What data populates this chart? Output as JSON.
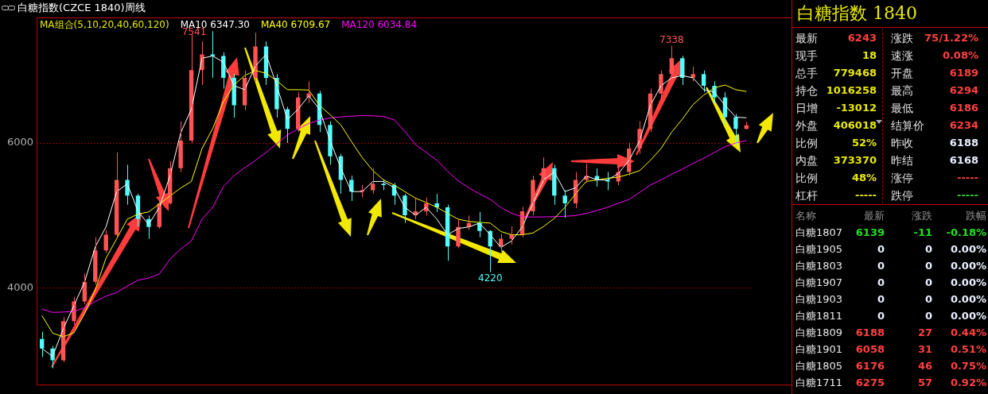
{
  "chart_data": [
    {
      "type": "candlestick",
      "title": "白糖指数(CZCE 1840)周线",
      "legend_title": "MA组合(5,10,20,40,60,120)",
      "legend": "top left",
      "grid": "y",
      "tick_labels": "y",
      "marker": "none",
      "categories": [
        null,
        null,
        null,
        null,
        null,
        null,
        null,
        null,
        null,
        null,
        null,
        null,
        null,
        null,
        null,
        null,
        null,
        null,
        null,
        null,
        null,
        null,
        null,
        null,
        null,
        null,
        null,
        null,
        null,
        null,
        null,
        null,
        null,
        null,
        null,
        null,
        null,
        null,
        null,
        null,
        null,
        null,
        null,
        null,
        null,
        null,
        null,
        null,
        null,
        null,
        null,
        null,
        null,
        null,
        null,
        null,
        null,
        null,
        null,
        null,
        null,
        null,
        null,
        null,
        null,
        null,
        null
      ],
      "ylim": [
        2670,
        7730
      ],
      "yticks": [
        4000,
        6000
      ],
      "ohlc": [
        [
          3300,
          3400,
          3050,
          3168
        ],
        [
          3168,
          3200,
          2897,
          3005
        ],
        [
          3005,
          3600,
          2980,
          3546
        ],
        [
          3546,
          3880,
          3500,
          3816
        ],
        [
          3816,
          4200,
          3780,
          4087
        ],
        [
          4087,
          4700,
          4050,
          4519
        ],
        [
          4519,
          4800,
          4480,
          4735
        ],
        [
          4735,
          5870,
          4700,
          5492
        ],
        [
          5492,
          5700,
          5150,
          5276
        ],
        [
          5276,
          5300,
          4850,
          4951
        ],
        [
          4951,
          5000,
          4681,
          4843
        ],
        [
          4843,
          5220,
          4820,
          5168
        ],
        [
          5168,
          5750,
          5150,
          5654
        ],
        [
          5654,
          6300,
          5600,
          6032
        ],
        [
          6032,
          7492,
          6000,
          7005
        ],
        [
          7005,
          7400,
          6800,
          7222
        ],
        [
          7222,
          7541,
          6900,
          7200
        ],
        [
          7200,
          7250,
          6750,
          6897
        ],
        [
          6897,
          6950,
          6350,
          6519
        ],
        [
          6519,
          7000,
          6450,
          6897
        ],
        [
          6897,
          7520,
          6850,
          7330
        ],
        [
          7330,
          7400,
          6800,
          6897
        ],
        [
          6897,
          6950,
          6350,
          6465
        ],
        [
          6465,
          6500,
          6000,
          6195
        ],
        [
          6195,
          6700,
          6150,
          6627
        ],
        [
          6627,
          6850,
          6550,
          6681
        ],
        [
          6681,
          6720,
          6150,
          6249
        ],
        [
          6249,
          6300,
          5700,
          5816
        ],
        [
          5816,
          5850,
          5300,
          5492
        ],
        [
          5492,
          5550,
          5200,
          5330
        ],
        [
          5330,
          5420,
          5250,
          5350
        ],
        [
          5350,
          5650,
          5300,
          5438
        ],
        [
          5438,
          5500,
          5350,
          5420
        ],
        [
          5420,
          5450,
          5150,
          5276
        ],
        [
          5276,
          5300,
          4900,
          5005
        ],
        [
          5005,
          5250,
          4950,
          5060
        ],
        [
          5060,
          5250,
          5000,
          5168
        ],
        [
          5168,
          5300,
          5050,
          5114
        ],
        [
          5114,
          5150,
          4378,
          4573
        ],
        [
          4573,
          4950,
          4550,
          4843
        ],
        [
          4843,
          5000,
          4800,
          4897
        ],
        [
          4897,
          5050,
          4700,
          4789
        ],
        [
          4789,
          4800,
          4220,
          4573
        ],
        [
          4573,
          4750,
          4500,
          4681
        ],
        [
          4681,
          4850,
          4600,
          4735
        ],
        [
          4735,
          5120,
          4700,
          5060
        ],
        [
          5060,
          5550,
          5000,
          5492
        ],
        [
          5492,
          5800,
          5450,
          5654
        ],
        [
          5654,
          5700,
          5150,
          5276
        ],
        [
          5276,
          5350,
          4970,
          5168
        ],
        [
          5168,
          5600,
          5100,
          5492
        ],
        [
          5492,
          5720,
          5450,
          5546
        ],
        [
          5546,
          5650,
          5400,
          5492
        ],
        [
          5492,
          5600,
          5350,
          5470
        ],
        [
          5470,
          5700,
          5420,
          5600
        ],
        [
          5600,
          6000,
          5550,
          5924
        ],
        [
          5924,
          6300,
          5850,
          6195
        ],
        [
          6195,
          6750,
          6150,
          6681
        ],
        [
          6681,
          7000,
          6600,
          6951
        ],
        [
          6951,
          7338,
          6900,
          7168
        ],
        [
          7168,
          7200,
          6800,
          6897
        ],
        [
          6897,
          7050,
          6850,
          6951
        ],
        [
          6951,
          7000,
          6700,
          6789
        ],
        [
          6789,
          6850,
          6550,
          6627
        ],
        [
          6627,
          6700,
          6250,
          6357
        ],
        [
          6357,
          6400,
          5980,
          6195
        ],
        [
          6195,
          6294,
          6186,
          6243
        ]
      ],
      "colors": [
        "#54fcfc",
        "#54fcfc",
        "#ff5454",
        "#ff5454",
        "#ff5454",
        "#ff5454",
        "#ff5454",
        "#ff5454",
        "#54fcfc",
        "#54fcfc",
        "#54fcfc",
        "#ff5454",
        "#ff5454",
        "#ff5454",
        "#ff5454",
        "#ff5454",
        "#54fcfc",
        "#54fcfc",
        "#54fcfc",
        "#ff5454",
        "#ff5454",
        "#54fcfc",
        "#54fcfc",
        "#54fcfc",
        "#ff5454",
        "#ff5454",
        "#54fcfc",
        "#54fcfc",
        "#54fcfc",
        "#54fcfc",
        "#ff5454",
        "#ff5454",
        "#54fcfc",
        "#54fcfc",
        "#54fcfc",
        "#ff5454",
        "#ff5454",
        "#54fcfc",
        "#54fcfc",
        "#ff5454",
        "#ff5454",
        "#54fcfc",
        "#54fcfc",
        "#ff5454",
        "#ff5454",
        "#ff5454",
        "#ff5454",
        "#ff5454",
        "#54fcfc",
        "#54fcfc",
        "#ff5454",
        "#ff5454",
        "#54fcfc",
        "#54fcfc",
        "#ff5454",
        "#ff5454",
        "#ff5454",
        "#ff5454",
        "#ff5454",
        "#ff5454",
        "#54fcfc",
        "#ff5454",
        "#54fcfc",
        "#54fcfc",
        "#54fcfc",
        "#54fcfc",
        "#ff5454"
      ],
      "series": [
        {
          "type": "line",
          "name": "MA10 6347.30",
          "color": "#ffffff",
          "values": [
            3168,
            3060,
            3440,
            3760,
            4087,
            4570,
            4843,
            5330,
            5438,
            5060,
            4876,
            5114,
            5546,
            6140,
            6465,
            7168,
            7200,
            7114,
            6789,
            6735,
            7060,
            7222,
            6789,
            6324,
            6465,
            6650,
            6465,
            6032,
            5654,
            5330,
            5330,
            5470,
            5470,
            5384,
            5114,
            5005,
            5114,
            4951,
            4735,
            4822,
            4843,
            4897,
            4735,
            4562,
            4650,
            4843,
            5168,
            5492,
            5600,
            5330,
            5384,
            5546,
            5492,
            5492,
            5578,
            5762,
            6032,
            6519,
            6789,
            6897,
            6930,
            6897,
            6735,
            6700,
            6519,
            6357,
            6347
          ]
        },
        {
          "type": "line",
          "name": "MA40 6709.67",
          "color": "#ffff00",
          "values": [
            3622,
            3380,
            3330,
            3384,
            3650,
            3980,
            4411,
            4680,
            4951,
            5020,
            5050,
            5160,
            5270,
            5380,
            5470,
            5924,
            6200,
            6570,
            6800,
            6930,
            7000,
            6960,
            6860,
            6735,
            6735,
            6730,
            6519,
            6390,
            6249,
            6020,
            5800,
            5620,
            5492,
            5420,
            5330,
            5240,
            5180,
            5114,
            5030,
            4950,
            4920,
            4905,
            4897,
            4780,
            4735,
            4735,
            4760,
            4850,
            4960,
            5114,
            5300,
            5470,
            5490,
            5514,
            5530,
            5570,
            5620,
            5760,
            5924,
            6150,
            6330,
            6530,
            6660,
            6760,
            6800,
            6735,
            6710
          ]
        },
        {
          "type": "line",
          "name": "MA120 6034.84",
          "color": "#ff00ff",
          "values": [
            3710,
            3665,
            3670,
            3680,
            3730,
            3816,
            3890,
            3940,
            4030,
            4110,
            4140,
            4195,
            4400,
            4540,
            4650,
            4950,
            5114,
            5400,
            5550,
            5660,
            5760,
            5870,
            5990,
            6110,
            6195,
            6270,
            6315,
            6345,
            6360,
            6370,
            6378,
            6375,
            6365,
            6320,
            6160,
            5978,
            5870,
            5762,
            5610,
            5480,
            5380,
            5300,
            5222,
            5110,
            5030,
            4985,
            4980,
            4982,
            4984,
            4990,
            5000,
            5030,
            5070,
            5114,
            5170,
            5222,
            5320,
            5420,
            5492,
            5570,
            5640,
            5720,
            5790,
            5870,
            5950,
            6000,
            6035
          ]
        }
      ],
      "annotations": [
        {
          "text": "7541",
          "y": 7541
        },
        {
          "text": "7338",
          "y": 7338
        },
        {
          "text": "4220",
          "y": 4220
        }
      ]
    },
    {
      "type": "other",
      "title": "白糖指数 1840",
      "annotations": [
        "最新",
        "6243",
        "涨跌",
        "75/1.22%",
        "现手",
        "18",
        "速涨",
        "0.08%",
        "总手",
        "779468",
        "开盘",
        "6189",
        "持仓",
        "1016258",
        "最高",
        "6294",
        "日增",
        "-13012",
        "最低",
        "6186",
        "外盘",
        "406018",
        "结算价",
        "6234",
        "比例",
        "52%",
        "昨收",
        "6188",
        "内盘",
        "373370",
        "昨结",
        "6168",
        "比例",
        "48%",
        "涨停",
        "-----",
        "杠杆",
        "-----",
        "跌停",
        "-----",
        "名称",
        "最新",
        "涨跌",
        "跌幅",
        "白糖1807",
        "6139",
        "-11",
        "-0.18%",
        "白糖1905",
        "0",
        "0",
        "0.00%",
        "白糖1803",
        "0",
        "0",
        "0.00%",
        "白糖1907",
        "0",
        "0",
        "0.00%",
        "白糖1903",
        "0",
        "0",
        "0.00%",
        "白糖1811",
        "0",
        "0",
        "0.00%",
        "白糖1809",
        "6188",
        "27",
        "0.44%",
        "白糖1901",
        "6058",
        "31",
        "0.51%",
        "白糖1805",
        "6176",
        "46",
        "0.75%",
        "白糖1711",
        "6275",
        "57",
        "0.92%"
      ]
    }
  ]
}
